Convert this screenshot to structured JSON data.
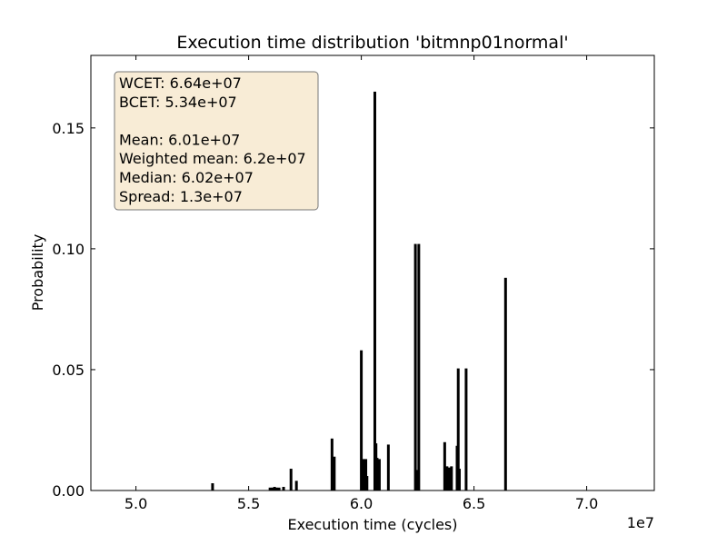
{
  "chart_data": {
    "type": "bar",
    "title": "Execution time distribution 'bitmnp01normal'",
    "xlabel": "Execution time (cycles)",
    "ylabel": "Probability",
    "x_offset_label": "1e7",
    "x_scale": 10000000,
    "xlim": [
      48000000,
      73000000
    ],
    "ylim": [
      0,
      0.18
    ],
    "xticks": [
      {
        "value": 50000000,
        "label": "5.0"
      },
      {
        "value": 55000000,
        "label": "5.5"
      },
      {
        "value": 60000000,
        "label": "6.0"
      },
      {
        "value": 65000000,
        "label": "6.5"
      },
      {
        "value": 70000000,
        "label": "7.0"
      }
    ],
    "yticks": [
      {
        "value": 0.0,
        "label": "0.00"
      },
      {
        "value": 0.05,
        "label": "0.05"
      },
      {
        "value": 0.1,
        "label": "0.10"
      },
      {
        "value": 0.15,
        "label": "0.15"
      }
    ],
    "grid": false,
    "stats_box": {
      "lines": [
        "WCET: 6.64e+07",
        "BCET: 5.34e+07",
        "",
        "Mean: 6.01e+07",
        "Weighted mean: 6.2e+07",
        "Median: 6.02e+07",
        "Spread: 1.3e+07"
      ],
      "placement": "top-left",
      "background": "#f8ecd6",
      "border": "#777777"
    },
    "bar_color": "#000000",
    "points": [
      {
        "x": 53400000,
        "y": 0.003
      },
      {
        "x": 55950000,
        "y": 0.0012
      },
      {
        "x": 56050000,
        "y": 0.0012
      },
      {
        "x": 56150000,
        "y": 0.0015
      },
      {
        "x": 56250000,
        "y": 0.0012
      },
      {
        "x": 56350000,
        "y": 0.0012
      },
      {
        "x": 56550000,
        "y": 0.0015
      },
      {
        "x": 56880000,
        "y": 0.009
      },
      {
        "x": 57120000,
        "y": 0.004
      },
      {
        "x": 58700000,
        "y": 0.0215
      },
      {
        "x": 58800000,
        "y": 0.014
      },
      {
        "x": 60000000,
        "y": 0.058
      },
      {
        "x": 60100000,
        "y": 0.013
      },
      {
        "x": 60200000,
        "y": 0.013
      },
      {
        "x": 60250000,
        "y": 0.006
      },
      {
        "x": 60600000,
        "y": 0.165
      },
      {
        "x": 60650000,
        "y": 0.0195
      },
      {
        "x": 60700000,
        "y": 0.0135
      },
      {
        "x": 60800000,
        "y": 0.013
      },
      {
        "x": 61200000,
        "y": 0.019
      },
      {
        "x": 62400000,
        "y": 0.102
      },
      {
        "x": 62500000,
        "y": 0.0085
      },
      {
        "x": 62550000,
        "y": 0.102
      },
      {
        "x": 63700000,
        "y": 0.02
      },
      {
        "x": 63800000,
        "y": 0.01
      },
      {
        "x": 63900000,
        "y": 0.0095
      },
      {
        "x": 64000000,
        "y": 0.01
      },
      {
        "x": 64250000,
        "y": 0.0185
      },
      {
        "x": 64300000,
        "y": 0.0505
      },
      {
        "x": 64350000,
        "y": 0.009
      },
      {
        "x": 64650000,
        "y": 0.0505
      },
      {
        "x": 66400000,
        "y": 0.088
      }
    ]
  }
}
